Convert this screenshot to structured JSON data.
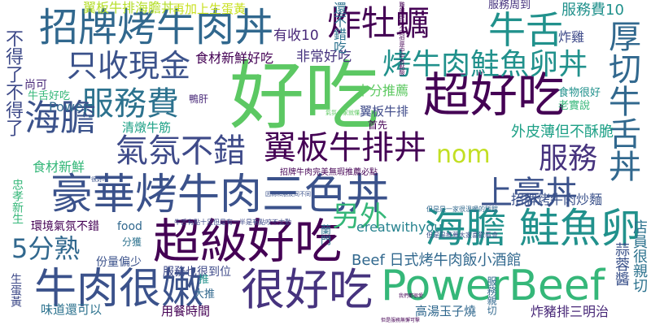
{
  "words": [
    {
      "text": "好吃",
      "color": "#5cc863"
    },
    {
      "text": "豪華烤牛肉三色丼",
      "color": "#3b528b"
    },
    {
      "text": "招牌烤牛肉丼",
      "color": "#31688e"
    },
    {
      "text": "超好吃",
      "color": "#440154"
    },
    {
      "text": "超級好吃",
      "color": "#440154"
    },
    {
      "text": "很好吃",
      "color": "#46337e"
    },
    {
      "text": "PowerBeef",
      "color": "#35b779"
    },
    {
      "text": "牛肉很嫩",
      "color": "#3b528b"
    },
    {
      "text": "海膽 鮭魚卵",
      "color": "#21918c"
    },
    {
      "text": "烤牛肉鮭魚卵丼",
      "color": "#21918c"
    },
    {
      "text": "翼板牛排丼",
      "color": "#440154"
    },
    {
      "text": "氣氛不錯",
      "color": "#3e4a89"
    },
    {
      "text": "服務費",
      "color": "#2c728e"
    },
    {
      "text": "只收現金",
      "color": "#3b528b"
    },
    {
      "text": "炸牡蠣",
      "color": "#440154"
    },
    {
      "text": "牛舌",
      "color": "#21918c"
    },
    {
      "text": "厚切牛舌丼",
      "color": "#31688e"
    },
    {
      "text": "海膽",
      "color": "#3b528b"
    },
    {
      "text": "服務",
      "color": "#46337e"
    },
    {
      "text": "nom",
      "color": "#c2df23"
    },
    {
      "text": "另外",
      "color": "#35b779"
    },
    {
      "text": "上豪丼",
      "color": "#3b528b"
    },
    {
      "text": "5分熟",
      "color": "#31688e"
    },
    {
      "text": "不得了不得了",
      "color": "#3e4a89"
    },
    {
      "text": "Beef 日式烤牛肉飯小酒館",
      "color": "#31688e"
    },
    {
      "text": "翼板牛排海膽丼",
      "color": "#b5de2b"
    },
    {
      "text": "再加上生蛋黃",
      "color": "#c8e020"
    },
    {
      "text": "服務費10",
      "color": "#21918c"
    },
    {
      "text": "服務周到",
      "color": "#46337e"
    },
    {
      "text": "食材新鮮好吃",
      "color": "#440154"
    },
    {
      "text": "非常好吃",
      "color": "#46337e"
    },
    {
      "text": "有收10",
      "color": "#482878"
    },
    {
      "text": "還不錯吃",
      "color": "#2c728e"
    },
    {
      "text": "炸雞",
      "color": "#3e4a89"
    },
    {
      "text": "招牌烤牛肉炒麵",
      "color": "#3b528b"
    },
    {
      "text": "外皮薄但不酥脆",
      "color": "#1fa187"
    },
    {
      "text": "食材新鮮",
      "color": "#35b779"
    },
    {
      "text": "清燉牛筋",
      "color": "#1fa187"
    },
    {
      "text": "十分推薦",
      "color": "#5ec962"
    },
    {
      "text": "翼板牛排",
      "color": "#3e4a89"
    },
    {
      "text": "Power",
      "color": "#31688e"
    },
    {
      "text": "尚可",
      "color": "#482878"
    },
    {
      "text": "環境氣氛不錯",
      "color": "#440154"
    },
    {
      "text": "food",
      "color": "#31688e"
    },
    {
      "text": "ereatwithyou",
      "color": "#26828e"
    },
    {
      "text": "份量偏少",
      "color": "#3b528b"
    },
    {
      "text": "服務也很到位",
      "color": "#3e4a89"
    },
    {
      "text": "用餐時間",
      "color": "#440154"
    },
    {
      "text": "味道還可以",
      "color": "#2c728e"
    },
    {
      "text": "高湯玉子燒",
      "color": "#31688e"
    },
    {
      "text": "炸豬排三明治",
      "color": "#482878"
    },
    {
      "text": "店員很親切",
      "color": "#2c728e"
    },
    {
      "text": "蒜蓉醬",
      "color": "#3b528b"
    },
    {
      "text": "忠孝新生",
      "color": "#35b779"
    },
    {
      "text": "生蛋黃",
      "color": "#3e4a89"
    },
    {
      "text": "牛舌好吃",
      "color": "#35b779"
    },
    {
      "text": "食物很好",
      "color": "#21918c"
    },
    {
      "text": "老實說",
      "color": "#35b779"
    },
    {
      "text": "鴨肝",
      "color": "#482878"
    },
    {
      "text": "首先",
      "color": "#440154"
    },
    {
      "text": "大推",
      "color": "#31688e"
    },
    {
      "text": "推",
      "color": "#21918c"
    },
    {
      "text": "分獲",
      "color": "#2c728e"
    },
    {
      "text": "蘭門",
      "color": "#2c728e"
    },
    {
      "text": "服務親切",
      "color": "#31688e"
    },
    {
      "text": "招牌牛肉完美無瑕推薦必點",
      "color": "#440154"
    },
    {
      "text": "牛舌有點十足但是有一半是有點咬不太動",
      "color": "#3e4a89"
    },
    {
      "text": "但是是一家很溫暖的飯館",
      "color": "#31688e"
    },
    {
      "text": "但是是推薦大家喜歡看會",
      "color": "#3b528b"
    },
    {
      "text": "難的部位不同但是中中有點酸",
      "color": "#440154"
    },
    {
      "text": "氣氛一家就懂",
      "color": "#5ec962"
    },
    {
      "text": "因為和朋友同不同",
      "color": "#3b528b"
    },
    {
      "text": "但是服務無懈可擊",
      "color": "#440154"
    },
    {
      "text": "我們都很愛",
      "color": "#440154"
    },
    {
      "text": "很好吃",
      "color": "#3b528b"
    }
  ]
}
